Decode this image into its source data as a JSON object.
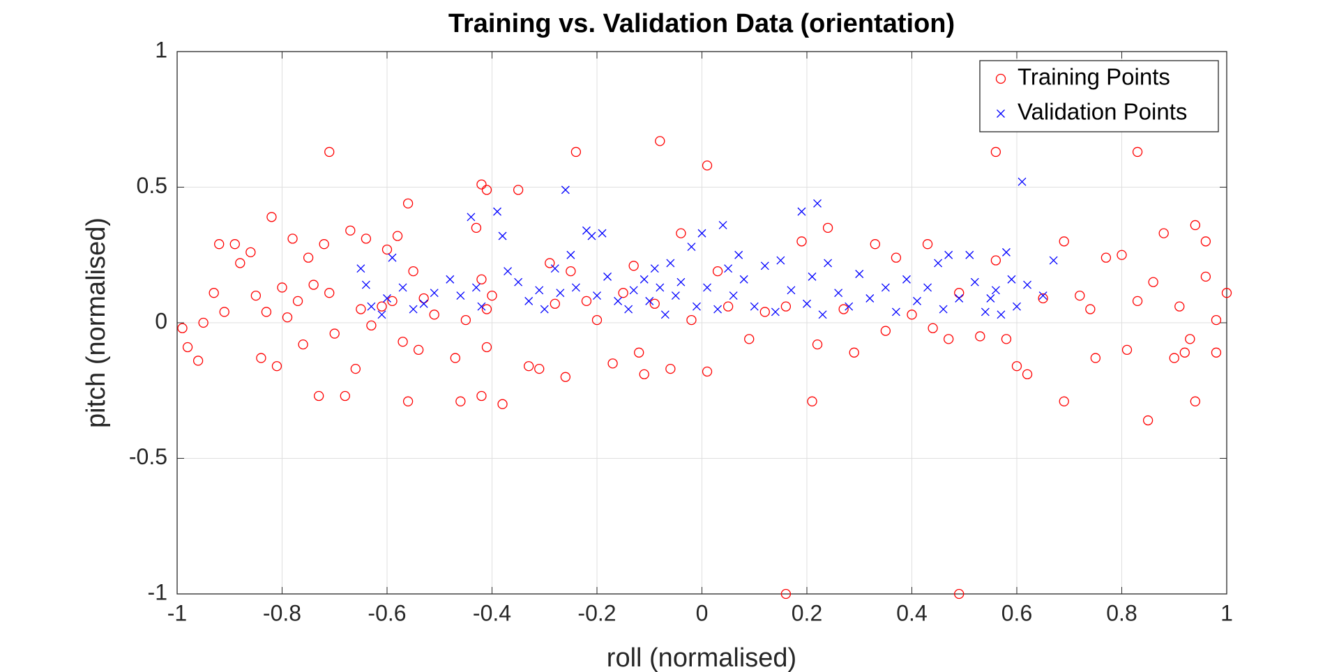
{
  "chart_data": {
    "type": "scatter",
    "title": "Training vs. Validation Data (orientation)",
    "x_label": "roll (normalised)",
    "y_label": "pitch (normalised)",
    "xlim": [
      -1,
      1
    ],
    "xticks": [
      -1,
      -0.8,
      -0.6,
      -0.4,
      -0.2,
      0,
      0.2,
      0.4,
      0.6,
      0.8,
      1
    ],
    "ylim": [
      -1,
      1
    ],
    "yticks": [
      -1,
      -0.5,
      0,
      0.5,
      1
    ],
    "grid": true,
    "legend": "northeast",
    "series": [
      {
        "name": "Training Points",
        "color": "#ff0000",
        "marker": "o",
        "x": [
          -0.99,
          -0.98,
          -0.96,
          -0.95,
          -0.93,
          -0.92,
          -0.91,
          -0.89,
          -0.88,
          -0.86,
          -0.85,
          -0.84,
          -0.83,
          -0.82,
          -0.81,
          -0.8,
          -0.79,
          -0.78,
          -0.77,
          -0.76,
          -0.75,
          -0.74,
          -0.73,
          -0.72,
          -0.71,
          -0.71,
          -0.7,
          -0.68,
          -0.67,
          -0.66,
          -0.65,
          -0.64,
          -0.63,
          -0.61,
          -0.6,
          -0.59,
          -0.58,
          -0.57,
          -0.56,
          -0.56,
          -0.55,
          -0.54,
          -0.53,
          -0.51,
          -0.47,
          -0.46,
          -0.45,
          -0.43,
          -0.42,
          -0.42,
          -0.42,
          -0.41,
          -0.41,
          -0.41,
          -0.4,
          -0.38,
          -0.35,
          -0.33,
          -0.31,
          -0.29,
          -0.28,
          -0.26,
          -0.25,
          -0.24,
          -0.22,
          -0.2,
          -0.17,
          -0.15,
          -0.13,
          -0.12,
          -0.11,
          -0.09,
          -0.08,
          -0.06,
          -0.04,
          -0.02,
          0.01,
          0.01,
          0.03,
          0.05,
          0.09,
          0.12,
          0.16,
          0.16,
          0.19,
          0.21,
          0.22,
          0.24,
          0.27,
          0.29,
          0.33,
          0.35,
          0.37,
          0.4,
          0.43,
          0.44,
          0.47,
          0.49,
          0.49,
          0.53,
          0.56,
          0.56,
          0.58,
          0.6,
          0.62,
          0.65,
          0.69,
          0.69,
          0.72,
          0.74,
          0.75,
          0.77,
          0.8,
          0.81,
          0.83,
          0.83,
          0.85,
          0.86,
          0.88,
          0.9,
          0.91,
          0.92,
          0.93,
          0.94,
          0.94,
          0.96,
          0.96,
          0.98,
          0.98,
          1.0
        ],
        "values": [
          -0.02,
          -0.09,
          -0.14,
          0.0,
          0.11,
          0.29,
          0.04,
          0.29,
          0.22,
          0.26,
          0.1,
          -0.13,
          0.04,
          0.39,
          -0.16,
          0.13,
          0.02,
          0.31,
          0.08,
          -0.08,
          0.24,
          0.14,
          -0.27,
          0.29,
          0.63,
          0.11,
          -0.04,
          -0.27,
          0.34,
          -0.17,
          0.05,
          0.31,
          -0.01,
          0.06,
          0.27,
          0.08,
          0.32,
          -0.07,
          0.44,
          -0.29,
          0.19,
          -0.1,
          0.09,
          0.03,
          -0.13,
          -0.29,
          0.01,
          0.35,
          0.51,
          0.16,
          -0.27,
          0.49,
          0.05,
          -0.09,
          0.1,
          -0.3,
          0.49,
          -0.16,
          -0.17,
          0.22,
          0.07,
          -0.2,
          0.19,
          0.63,
          0.08,
          0.01,
          -0.15,
          0.11,
          0.21,
          -0.11,
          -0.19,
          0.07,
          0.67,
          -0.17,
          0.33,
          0.01,
          0.58,
          -0.18,
          0.19,
          0.06,
          -0.06,
          0.04,
          -1.0,
          0.06,
          0.3,
          -0.29,
          -0.08,
          0.35,
          0.05,
          -0.11,
          0.29,
          -0.03,
          0.24,
          0.03,
          0.29,
          -0.02,
          -0.06,
          -1.0,
          0.11,
          -0.05,
          0.63,
          0.23,
          -0.06,
          -0.16,
          -0.19,
          0.09,
          0.3,
          -0.29,
          0.1,
          0.05,
          -0.13,
          0.24,
          0.25,
          -0.1,
          0.63,
          0.08,
          -0.36,
          0.15,
          0.33,
          -0.13,
          0.06,
          -0.11,
          -0.06,
          0.36,
          -0.29,
          0.3,
          0.17,
          0.01,
          -0.11,
          0.11
        ]
      },
      {
        "name": "Validation Points",
        "color": "#0000ff",
        "marker": "x",
        "x": [
          -0.65,
          -0.64,
          -0.63,
          -0.61,
          -0.6,
          -0.59,
          -0.57,
          -0.55,
          -0.53,
          -0.51,
          -0.48,
          -0.46,
          -0.44,
          -0.43,
          -0.42,
          -0.39,
          -0.38,
          -0.37,
          -0.35,
          -0.33,
          -0.31,
          -0.3,
          -0.28,
          -0.27,
          -0.26,
          -0.25,
          -0.24,
          -0.22,
          -0.21,
          -0.2,
          -0.19,
          -0.18,
          -0.16,
          -0.14,
          -0.13,
          -0.11,
          -0.1,
          -0.09,
          -0.08,
          -0.07,
          -0.06,
          -0.05,
          -0.04,
          -0.02,
          -0.01,
          0.0,
          0.01,
          0.03,
          0.04,
          0.05,
          0.06,
          0.07,
          0.08,
          0.1,
          0.12,
          0.14,
          0.15,
          0.17,
          0.19,
          0.2,
          0.21,
          0.22,
          0.23,
          0.24,
          0.26,
          0.28,
          0.3,
          0.32,
          0.35,
          0.37,
          0.39,
          0.41,
          0.43,
          0.45,
          0.46,
          0.47,
          0.49,
          0.51,
          0.52,
          0.54,
          0.55,
          0.56,
          0.57,
          0.58,
          0.59,
          0.6,
          0.61,
          0.62,
          0.65,
          0.67
        ],
        "values": [
          0.2,
          0.14,
          0.06,
          0.03,
          0.09,
          0.24,
          0.13,
          0.05,
          0.07,
          0.11,
          0.16,
          0.1,
          0.39,
          0.13,
          0.06,
          0.41,
          0.32,
          0.19,
          0.15,
          0.08,
          0.12,
          0.05,
          0.2,
          0.11,
          0.49,
          0.25,
          0.13,
          0.34,
          0.32,
          0.1,
          0.33,
          0.17,
          0.08,
          0.05,
          0.12,
          0.16,
          0.08,
          0.2,
          0.13,
          0.03,
          0.22,
          0.1,
          0.15,
          0.28,
          0.06,
          0.33,
          0.13,
          0.05,
          0.36,
          0.2,
          0.1,
          0.25,
          0.16,
          0.06,
          0.21,
          0.04,
          0.23,
          0.12,
          0.41,
          0.07,
          0.17,
          0.44,
          0.03,
          0.22,
          0.11,
          0.06,
          0.18,
          0.09,
          0.13,
          0.04,
          0.16,
          0.08,
          0.13,
          0.22,
          0.05,
          0.25,
          0.09,
          0.25,
          0.15,
          0.04,
          0.09,
          0.12,
          0.03,
          0.26,
          0.16,
          0.06,
          0.52,
          0.14,
          0.1,
          0.23
        ]
      }
    ]
  }
}
